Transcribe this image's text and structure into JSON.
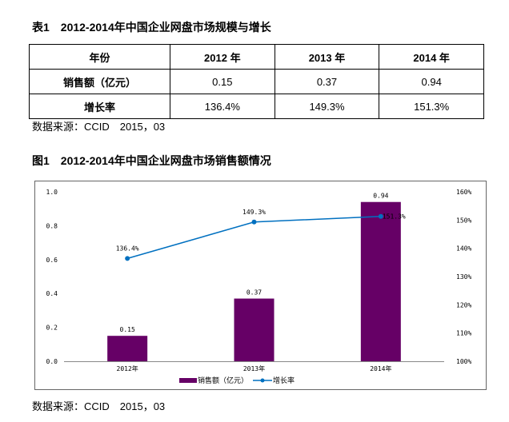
{
  "table_title": "表1　2012-2014年中国企业网盘市场规模与增长",
  "table": {
    "header": [
      "年份",
      "2012 年",
      "2013 年",
      "2014 年"
    ],
    "rows": [
      [
        "销售额（亿元）",
        "0.15",
        "0.37",
        "0.94"
      ],
      [
        "增长率",
        "136.4%",
        "149.3%",
        "151.3%"
      ]
    ]
  },
  "source_1": "数据来源：CCID　2015，03",
  "figure_title": "图1　2012-2014年中国企业网盘市场销售额情况",
  "source_2": "数据来源：CCID　2015，03",
  "chart_data": {
    "type": "bar+line",
    "categories": [
      "2012年",
      "2013年",
      "2014年"
    ],
    "series": [
      {
        "name": "销售额（亿元）",
        "type": "bar",
        "axis": "left",
        "values": [
          0.15,
          0.37,
          0.94
        ],
        "labels": [
          "0.15",
          "0.37",
          "0.94"
        ],
        "color": "#660066"
      },
      {
        "name": "增长率",
        "type": "line",
        "axis": "right",
        "values": [
          136.4,
          149.3,
          151.3
        ],
        "labels": [
          "136.4%",
          "149.3%",
          "151.3%"
        ],
        "color": "#0070C0"
      }
    ],
    "left_axis": {
      "ylim": [
        0,
        1.0
      ],
      "ticks": [
        "0.0",
        "0.2",
        "0.4",
        "0.6",
        "0.8",
        "1.0"
      ]
    },
    "right_axis": {
      "ylim": [
        100,
        160
      ],
      "ticks": [
        "100%",
        "110%",
        "120%",
        "130%",
        "140%",
        "150%",
        "160%"
      ]
    },
    "grid": false,
    "legend": "bottom"
  }
}
